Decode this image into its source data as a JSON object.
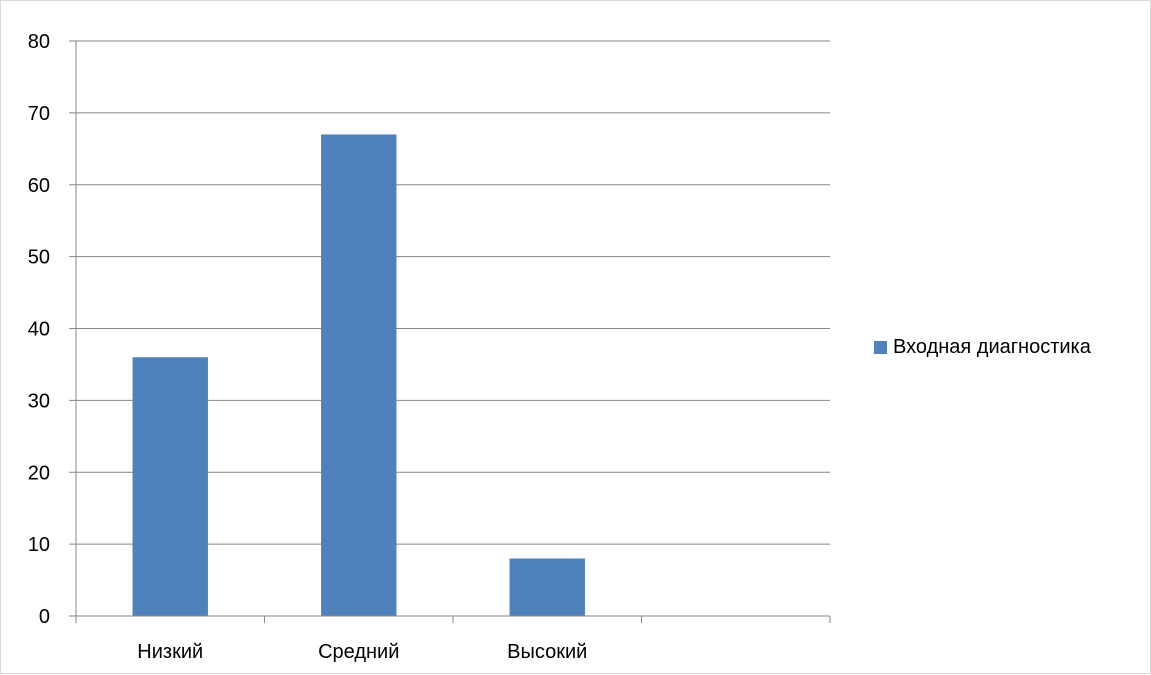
{
  "chart_data": {
    "type": "bar",
    "title": "",
    "xlabel": "",
    "ylabel": "",
    "categories": [
      "Низкий",
      "Средний",
      "Высокий",
      ""
    ],
    "series": [
      {
        "name": "Входная диагностика",
        "values": [
          36,
          67,
          8,
          null
        ],
        "color": "#4F81BD"
      }
    ],
    "ylim": [
      0,
      80
    ],
    "yticks": [
      0,
      10,
      20,
      30,
      40,
      50,
      60,
      70,
      80
    ],
    "grid": true,
    "legend_position": "right"
  },
  "colors": {
    "bar": "#4F81BD",
    "grid": "#868686",
    "axis": "#868686"
  }
}
